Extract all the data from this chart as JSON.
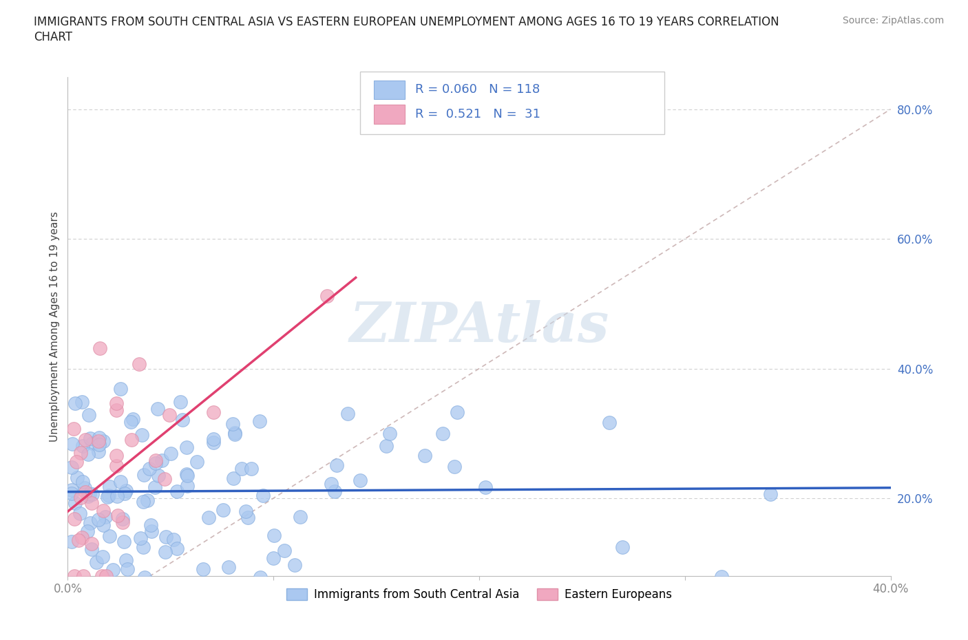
{
  "title_line1": "IMMIGRANTS FROM SOUTH CENTRAL ASIA VS EASTERN EUROPEAN UNEMPLOYMENT AMONG AGES 16 TO 19 YEARS CORRELATION",
  "title_line2": "CHART",
  "source": "Source: ZipAtlas.com",
  "ylabel": "Unemployment Among Ages 16 to 19 years",
  "xlim": [
    0.0,
    0.4
  ],
  "ylim": [
    0.08,
    0.85
  ],
  "blue_color": "#aac8f0",
  "pink_color": "#f0a8c0",
  "blue_edge_color": "#8ab0e0",
  "pink_edge_color": "#e090a8",
  "blue_line_color": "#3060c0",
  "pink_line_color": "#e04070",
  "diag_line_color": "#c8b0b0",
  "grid_color": "#d0d0d0",
  "legend_label_blue": "Immigrants from South Central Asia",
  "legend_label_pink": "Eastern Europeans",
  "watermark": "ZIPAtlas",
  "watermark_color": "#c8d8e8",
  "R_blue": 0.06,
  "N_blue": 118,
  "R_pink": 0.521,
  "N_pink": 31,
  "ytick_color": "#4472c4",
  "xtick_color": "#888888"
}
